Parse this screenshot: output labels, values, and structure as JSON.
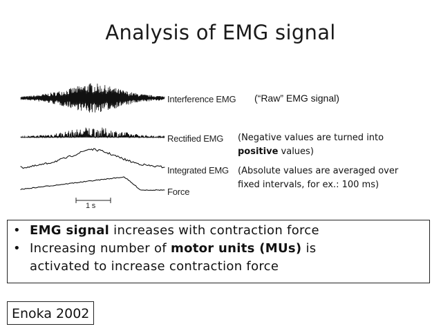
{
  "title": "Analysis of EMG signal",
  "figure": {
    "labels": {
      "interference": "Interference EMG",
      "rectified": "Rectified EMG",
      "integrated": "Integrated EMG",
      "force": "Force"
    },
    "scale_bar": "1 s"
  },
  "annotations": {
    "raw": "(“Raw” EMG signal)",
    "rectified_line1": "(Negative values are turned into",
    "rectified_bold": "positive",
    "rectified_rest": " values)",
    "integrated_line1": "(Absolute values are averaged over",
    "integrated_line2": "fixed intervals, for ex.: 100 ms)"
  },
  "bullets": {
    "b1_bold": "EMG signal",
    "b1_rest": " increases with contraction force",
    "b2_pre": "Increasing number of ",
    "b2_bold": "motor units (MUs)",
    "b2_post": " is",
    "b2_line2": "activated to increase contraction force"
  },
  "citation": "Enoka 2002"
}
